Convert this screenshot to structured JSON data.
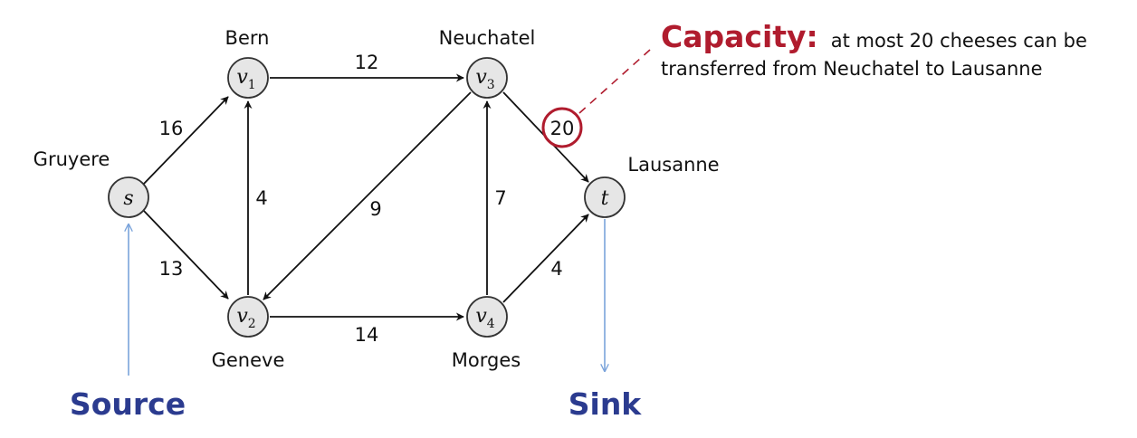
{
  "nodes": {
    "s": {
      "name": "s",
      "sub": "",
      "city": "Gruyere"
    },
    "v1": {
      "name": "v",
      "sub": "1",
      "city": "Bern"
    },
    "v2": {
      "name": "v",
      "sub": "2",
      "city": "Geneve"
    },
    "v3": {
      "name": "v",
      "sub": "3",
      "city": "Neuchatel"
    },
    "v4": {
      "name": "v",
      "sub": "4",
      "city": "Morges"
    },
    "t": {
      "name": "t",
      "sub": "",
      "city": "Lausanne"
    }
  },
  "edges": [
    {
      "from": "s",
      "to": "v1",
      "capacity": "16"
    },
    {
      "from": "s",
      "to": "v2",
      "capacity": "13"
    },
    {
      "from": "v2",
      "to": "v1",
      "capacity": "4"
    },
    {
      "from": "v1",
      "to": "v3",
      "capacity": "12"
    },
    {
      "from": "v3",
      "to": "v2",
      "capacity": "9"
    },
    {
      "from": "v2",
      "to": "v4",
      "capacity": "14"
    },
    {
      "from": "v4",
      "to": "v3",
      "capacity": "7"
    },
    {
      "from": "v3",
      "to": "t",
      "capacity": "20"
    },
    {
      "from": "v4",
      "to": "t",
      "capacity": "4"
    }
  ],
  "labels": {
    "source": "Source",
    "sink": "Sink"
  },
  "annotation": {
    "heading": "Capacity:",
    "line1": "at most 20 cheeses can be",
    "line2": "transferred from Neuchatel to Lausanne"
  },
  "colors": {
    "role": "#2b3b8f",
    "highlight": "#b01c2e",
    "pointer": "#7aa3db"
  }
}
